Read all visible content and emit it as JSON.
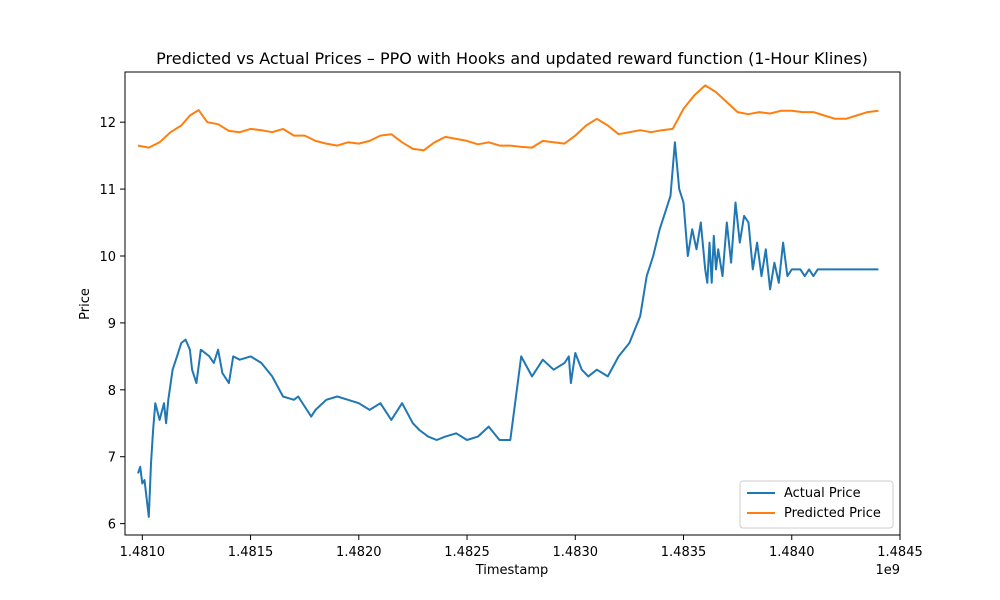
{
  "chart_data": {
    "type": "line",
    "title": "Predicted vs Actual Prices – PPO with Hooks and updated reward function (1-Hour Klines)",
    "xlabel": "Timestamp",
    "ylabel": "Price",
    "x_offset_label": "1e9",
    "xlim": [
      1.48092,
      1.4845
    ],
    "ylim": [
      5.83,
      12.75
    ],
    "x_ticks": [
      1.481,
      1.4815,
      1.482,
      1.4825,
      1.483,
      1.4835,
      1.484,
      1.4845
    ],
    "x_tick_labels": [
      "1.4810",
      "1.4815",
      "1.4820",
      "1.4825",
      "1.4830",
      "1.4835",
      "1.4840",
      "1.4845"
    ],
    "y_ticks": [
      6,
      7,
      8,
      9,
      10,
      11,
      12
    ],
    "y_tick_labels": [
      "6",
      "7",
      "8",
      "9",
      "10",
      "11",
      "12"
    ],
    "grid": false,
    "legend_position": "lower-right",
    "series": [
      {
        "name": "Actual Price",
        "color": "#1f77b4",
        "x": [
          1.48098,
          1.48099,
          1.481,
          1.48101,
          1.48103,
          1.48104,
          1.48105,
          1.48106,
          1.48108,
          1.4811,
          1.48111,
          1.48112,
          1.48114,
          1.48116,
          1.48118,
          1.4812,
          1.48122,
          1.48123,
          1.48125,
          1.48127,
          1.48129,
          1.48131,
          1.48133,
          1.48135,
          1.48137,
          1.4814,
          1.48142,
          1.48145,
          1.4815,
          1.48155,
          1.4816,
          1.48165,
          1.4817,
          1.48172,
          1.48175,
          1.48178,
          1.4818,
          1.48185,
          1.4819,
          1.48195,
          1.482,
          1.48205,
          1.4821,
          1.48215,
          1.4822,
          1.48225,
          1.48228,
          1.48232,
          1.48236,
          1.4824,
          1.48245,
          1.4825,
          1.48255,
          1.4826,
          1.48265,
          1.4827,
          1.48275,
          1.4828,
          1.48285,
          1.4829,
          1.48295,
          1.48297,
          1.48298,
          1.483,
          1.48303,
          1.48306,
          1.4831,
          1.48315,
          1.4832,
          1.48325,
          1.4833,
          1.48333,
          1.48336,
          1.48339,
          1.48342,
          1.48344,
          1.48345,
          1.48346,
          1.48348,
          1.4835,
          1.48352,
          1.48354,
          1.48356,
          1.48358,
          1.4836,
          1.48361,
          1.48362,
          1.48363,
          1.48364,
          1.48365,
          1.48366,
          1.48368,
          1.4837,
          1.48372,
          1.48374,
          1.48376,
          1.48378,
          1.4838,
          1.48382,
          1.48384,
          1.48386,
          1.48388,
          1.4839,
          1.48392,
          1.48394,
          1.48396,
          1.48398,
          1.484,
          1.48402,
          1.48404,
          1.48406,
          1.48408,
          1.4841,
          1.48412,
          1.48414,
          1.48416,
          1.48418,
          1.4842,
          1.48422,
          1.48424,
          1.48426,
          1.48428,
          1.4843,
          1.48432,
          1.48434,
          1.48436,
          1.48438,
          1.4844
        ],
        "y": [
          6.75,
          6.85,
          6.6,
          6.65,
          6.1,
          6.9,
          7.4,
          7.8,
          7.55,
          7.8,
          7.5,
          7.85,
          8.3,
          8.5,
          8.7,
          8.75,
          8.6,
          8.3,
          8.1,
          8.6,
          8.55,
          8.5,
          8.4,
          8.6,
          8.25,
          8.1,
          8.5,
          8.45,
          8.5,
          8.4,
          8.2,
          7.9,
          7.85,
          7.9,
          7.75,
          7.6,
          7.7,
          7.85,
          7.9,
          7.85,
          7.8,
          7.7,
          7.8,
          7.55,
          7.8,
          7.5,
          7.4,
          7.3,
          7.25,
          7.3,
          7.35,
          7.25,
          7.3,
          7.45,
          7.25,
          7.25,
          8.5,
          8.2,
          8.45,
          8.3,
          8.4,
          8.5,
          8.1,
          8.55,
          8.3,
          8.2,
          8.3,
          8.2,
          8.5,
          8.7,
          9.1,
          9.7,
          10.0,
          10.4,
          10.7,
          10.9,
          11.3,
          11.7,
          11.0,
          10.8,
          10.0,
          10.4,
          10.1,
          10.5,
          9.8,
          9.6,
          10.2,
          9.6,
          10.3,
          9.8,
          10.1,
          9.7,
          10.5,
          9.9,
          10.8,
          10.2,
          10.6,
          10.5,
          9.8,
          10.2,
          9.7,
          10.1,
          9.5,
          9.9,
          9.6,
          10.2,
          9.7,
          9.8,
          9.8,
          9.8,
          9.7,
          9.8,
          9.7,
          9.8,
          9.8,
          9.8,
          9.8,
          9.8,
          9.8,
          9.8,
          9.8,
          9.8,
          9.8,
          9.8,
          9.8,
          9.8,
          9.8,
          9.8
        ]
      },
      {
        "name": "Predicted Price",
        "color": "#ff7f0e",
        "x": [
          1.48098,
          1.48103,
          1.48108,
          1.48113,
          1.48118,
          1.48122,
          1.48126,
          1.4813,
          1.48135,
          1.4814,
          1.48145,
          1.4815,
          1.48155,
          1.4816,
          1.48165,
          1.4817,
          1.48175,
          1.4818,
          1.48185,
          1.4819,
          1.48195,
          1.482,
          1.48205,
          1.4821,
          1.48215,
          1.4822,
          1.48225,
          1.4823,
          1.48235,
          1.4824,
          1.48245,
          1.4825,
          1.48255,
          1.4826,
          1.48265,
          1.4827,
          1.48275,
          1.4828,
          1.48285,
          1.4829,
          1.48295,
          1.483,
          1.48305,
          1.4831,
          1.48315,
          1.4832,
          1.48325,
          1.4833,
          1.48335,
          1.4834,
          1.48345,
          1.4835,
          1.48355,
          1.4836,
          1.48365,
          1.4837,
          1.48375,
          1.4838,
          1.48385,
          1.4839,
          1.48395,
          1.484,
          1.48405,
          1.4841,
          1.48415,
          1.4842,
          1.48425,
          1.4843,
          1.48435,
          1.4844
        ],
        "y": [
          11.65,
          11.62,
          11.7,
          11.85,
          11.95,
          12.1,
          12.18,
          12.0,
          11.97,
          11.87,
          11.85,
          11.9,
          11.88,
          11.85,
          11.9,
          11.8,
          11.8,
          11.72,
          11.68,
          11.65,
          11.7,
          11.68,
          11.72,
          11.8,
          11.82,
          11.7,
          11.6,
          11.58,
          11.7,
          11.78,
          11.75,
          11.72,
          11.67,
          11.7,
          11.65,
          11.65,
          11.63,
          11.62,
          11.72,
          11.7,
          11.68,
          11.8,
          11.95,
          12.05,
          11.95,
          11.82,
          11.85,
          11.88,
          11.85,
          11.88,
          11.9,
          12.2,
          12.4,
          12.55,
          12.45,
          12.3,
          12.15,
          12.12,
          12.15,
          12.13,
          12.17,
          12.17,
          12.15,
          12.15,
          12.1,
          12.05,
          12.05,
          12.1,
          12.15,
          12.17
        ]
      }
    ]
  }
}
